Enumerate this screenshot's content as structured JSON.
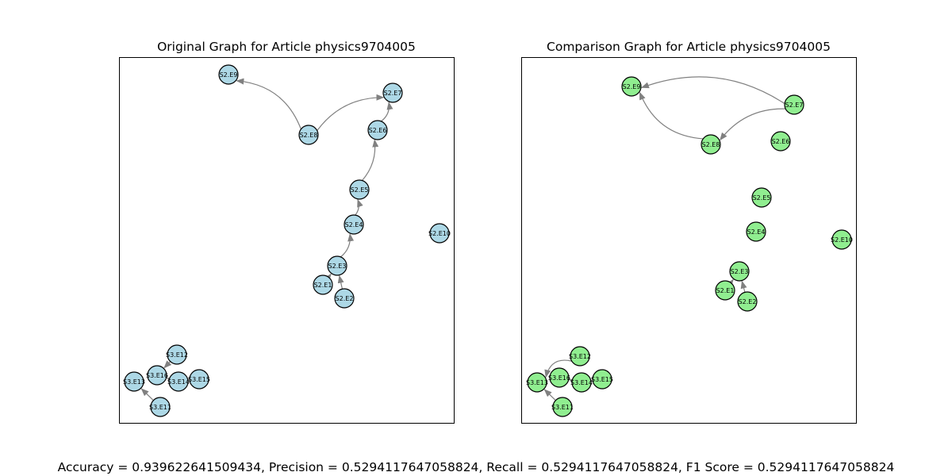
{
  "panels": [
    {
      "title": "Original Graph for Article physics9704005",
      "node_color": "#add8e6",
      "nodes": [
        "S2.E9",
        "S2.E7",
        "S2.E8",
        "S2.E6",
        "S2.E5",
        "S2.E4",
        "S2.E10",
        "S2.E3",
        "S2.E1",
        "S2.E2",
        "S3.E12",
        "S3.E16",
        "S3.E13",
        "S3.E14",
        "S3.E15",
        "S3.E11"
      ],
      "edges": [
        [
          "S2.E8",
          "S2.E9"
        ],
        [
          "S2.E8",
          "S2.E7"
        ],
        [
          "S2.E6",
          "S2.E7"
        ],
        [
          "S2.E5",
          "S2.E6"
        ],
        [
          "S2.E4",
          "S2.E5"
        ],
        [
          "S2.E3",
          "S2.E4"
        ],
        [
          "S2.E1",
          "S2.E3"
        ],
        [
          "S2.E2",
          "S2.E3"
        ],
        [
          "S3.E12",
          "S3.E16"
        ],
        [
          "S3.E14",
          "S3.E16"
        ],
        [
          "S3.E11",
          "S3.E13"
        ]
      ]
    },
    {
      "title": "Comparison Graph for Article physics9704005",
      "node_color": "#90ee90",
      "nodes": [
        "S2.E9",
        "S2.E7",
        "S2.E8",
        "S2.E6",
        "S2.E5",
        "S2.E4",
        "S2.E10",
        "S2.E3",
        "S2.E1",
        "S2.E2",
        "S3.E12",
        "S3.E16",
        "S3.E13",
        "S3.E14",
        "S3.E15",
        "S3.E11"
      ],
      "edges": [
        [
          "S2.E7",
          "S2.E9"
        ],
        [
          "S2.E8",
          "S2.E9"
        ],
        [
          "S2.E7",
          "S2.E8"
        ],
        [
          "S2.E1",
          "S2.E3"
        ],
        [
          "S2.E2",
          "S2.E3"
        ],
        [
          "S3.E12",
          "S3.E13"
        ],
        [
          "S3.E14",
          "S3.E16"
        ],
        [
          "S3.E11",
          "S3.E13"
        ]
      ]
    }
  ],
  "metrics_text": "Accuracy = 0.939622641509434, Precision = 0.5294117647058824, Recall = 0.5294117647058824, F1 Score = 0.5294117647058824",
  "edge_color": "#808080"
}
